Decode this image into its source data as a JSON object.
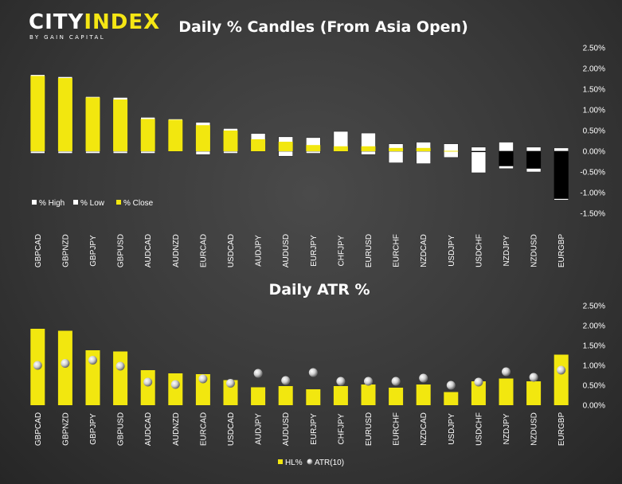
{
  "logo": {
    "brand_a": "CITY",
    "brand_b": "INDEX",
    "tagline": "BY GAIN CAPITAL"
  },
  "colors": {
    "close": "#f2e70f",
    "high": "#ffffff",
    "low": "#000000",
    "hl": "#f2e70f",
    "atr_marker": "#d9d9d9"
  },
  "chart_data": [
    {
      "type": "bar",
      "title": "Daily % Candles (From Asia Open)",
      "categories": [
        "GBPCAD",
        "GBPNZD",
        "GBPJPY",
        "GBPUSD",
        "AUDCAD",
        "AUDNZD",
        "EURCAD",
        "USDCAD",
        "AUDJPY",
        "AUDUSD",
        "EURJPY",
        "CHFJPY",
        "EURUSD",
        "EURCHF",
        "NZDCAD",
        "USDJPY",
        "USDCHF",
        "NZDJPY",
        "NZDUSD",
        "EURGBP"
      ],
      "series": [
        {
          "name": "% High",
          "values": [
            1.85,
            1.8,
            1.32,
            1.3,
            0.82,
            0.78,
            0.7,
            0.55,
            0.43,
            0.35,
            0.33,
            0.48,
            0.44,
            0.18,
            0.22,
            0.18,
            0.1,
            0.22,
            0.1,
            0.08
          ]
        },
        {
          "name": "% Low",
          "values": [
            -0.05,
            -0.05,
            -0.05,
            -0.05,
            -0.05,
            0.0,
            -0.08,
            -0.05,
            0.0,
            -0.12,
            -0.05,
            0.0,
            -0.08,
            -0.28,
            -0.3,
            -0.15,
            -0.52,
            -0.42,
            -0.5,
            -1.18
          ]
        },
        {
          "name": "% Close",
          "values": [
            1.82,
            1.77,
            1.3,
            1.25,
            0.78,
            0.76,
            0.63,
            0.5,
            0.29,
            0.23,
            0.15,
            0.12,
            0.12,
            0.08,
            0.08,
            0.01,
            -0.02,
            -0.36,
            -0.42,
            -1.15
          ]
        }
      ],
      "y_ticks": [
        "2.50%",
        "2.00%",
        "1.50%",
        "1.00%",
        "0.50%",
        "0.00%",
        "-0.50%",
        "-1.00%",
        "-1.50%"
      ],
      "ylim": [
        -1.5,
        2.5
      ],
      "legend_position": "bottom-left",
      "grid": false
    },
    {
      "type": "bar",
      "title": "Daily ATR %",
      "categories": [
        "GBPCAD",
        "GBPNZD",
        "GBPJPY",
        "GBPUSD",
        "AUDCAD",
        "AUDNZD",
        "EURCAD",
        "USDCAD",
        "AUDJPY",
        "AUDUSD",
        "EURJPY",
        "CHFJPY",
        "EURUSD",
        "EURCHF",
        "NZDCAD",
        "USDJPY",
        "USDCHF",
        "NZDJPY",
        "NZDUSD",
        "EURGBP"
      ],
      "series": [
        {
          "name": "HL%",
          "values": [
            1.92,
            1.87,
            1.38,
            1.35,
            0.88,
            0.8,
            0.78,
            0.63,
            0.45,
            0.48,
            0.4,
            0.48,
            0.52,
            0.44,
            0.52,
            0.33,
            0.6,
            0.67,
            0.6,
            1.27
          ]
        },
        {
          "name": "ATR(10)",
          "values": [
            1.0,
            1.05,
            1.13,
            0.98,
            0.58,
            0.52,
            0.66,
            0.55,
            0.8,
            0.62,
            0.82,
            0.6,
            0.6,
            0.6,
            0.68,
            0.5,
            0.58,
            0.84,
            0.7,
            0.88
          ]
        }
      ],
      "y_ticks": [
        "2.50%",
        "2.00%",
        "1.50%",
        "1.00%",
        "0.50%",
        "0.00%"
      ],
      "ylim": [
        0,
        2.5
      ],
      "legend_position": "bottom",
      "grid": false
    }
  ]
}
